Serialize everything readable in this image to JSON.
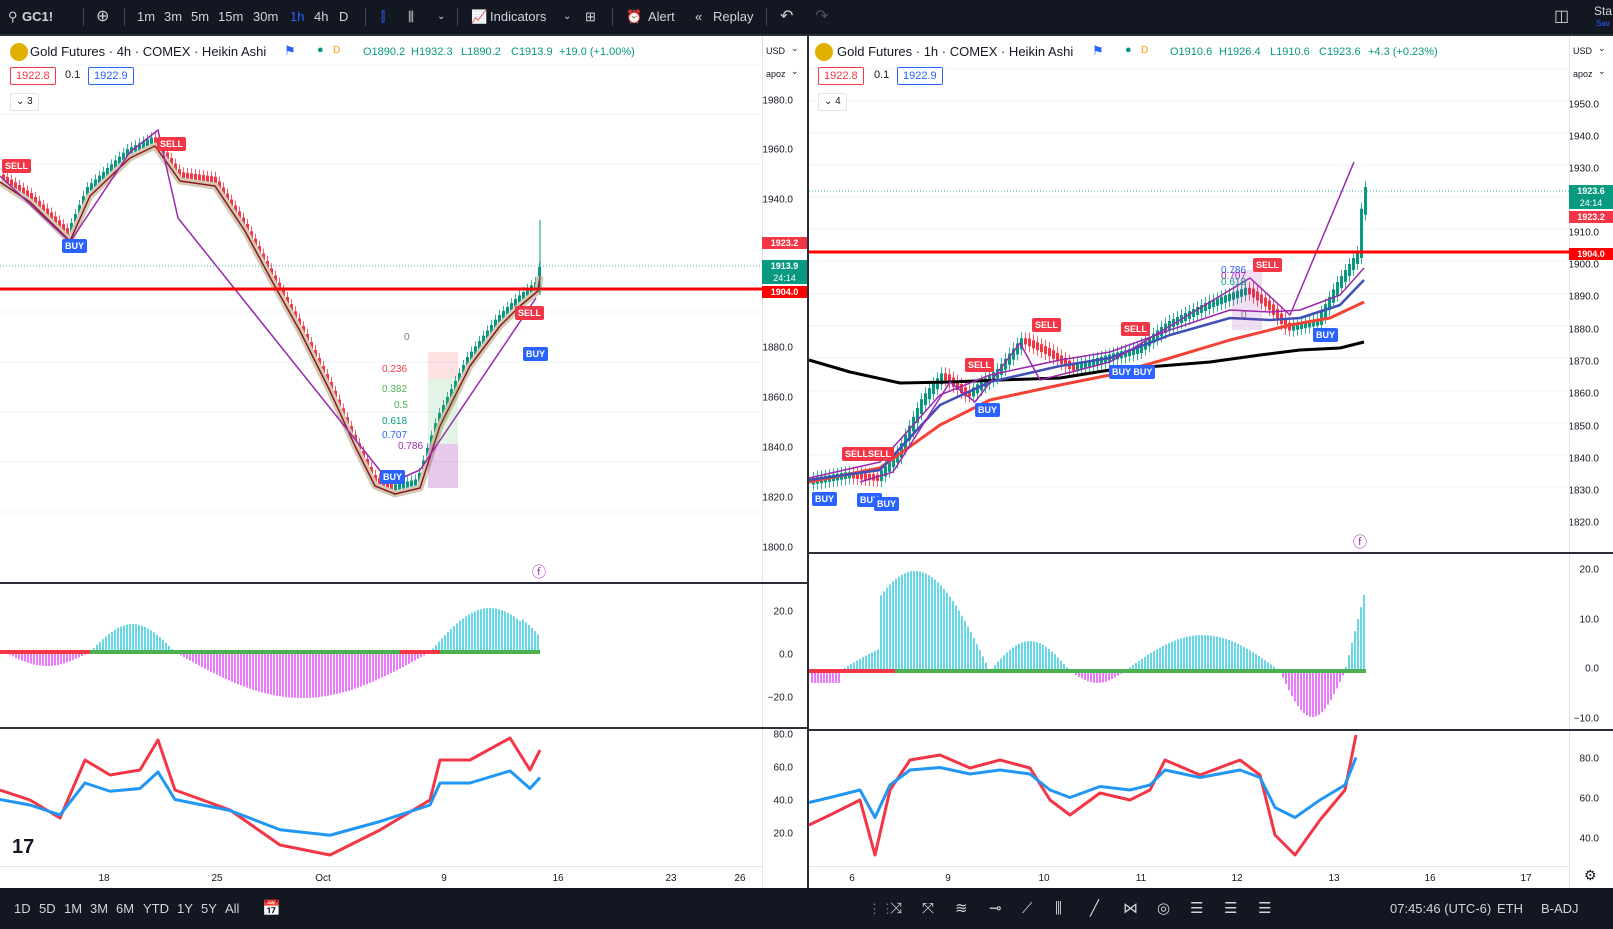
{
  "toolbar": {
    "symbol": "GC1!",
    "timeframes": [
      "1m",
      "3m",
      "5m",
      "15m",
      "30m",
      "1h",
      "4h",
      "D"
    ],
    "active_tf": "1h",
    "indicators": "Indicators",
    "alert": "Alert",
    "replay": "Replay",
    "right": "Sta",
    "right2": "Sav"
  },
  "bottom": {
    "ranges": [
      "1D",
      "5D",
      "1M",
      "3M",
      "6M",
      "YTD",
      "1Y",
      "5Y",
      "All"
    ],
    "time": "07:45:46 (UTC-6)",
    "session": "ETH",
    "adj": "B-ADJ"
  },
  "left": {
    "title": "Gold Futures · 4h · COMEX · Heikin Ashi",
    "d": "D",
    "o": "O1890.2",
    "h": "H1932.3",
    "l": "L1890.2",
    "c": "C1913.9",
    "chg": "+19.0 (+1.00%)",
    "bid": "1922.8",
    "spread": "0.1",
    "ask": "1922.9",
    "count": "3",
    "currency": "USD",
    "scale": "apoz",
    "yticks": [
      "1980.0",
      "1960.0",
      "1940.0",
      "1880.0",
      "1860.0",
      "1840.0",
      "1820.0",
      "1800.0"
    ],
    "osc_ticks": [
      "20.0",
      "0.0",
      "−20.0"
    ],
    "rsi_ticks": [
      "80.0",
      "60.0",
      "40.0",
      "20.0"
    ],
    "xticks": [
      "18",
      "25",
      "Oct",
      "9",
      "16",
      "23",
      "26"
    ],
    "labels": {
      "p1": "1923.2",
      "p2": "1913.9",
      "p3": "24:14",
      "p4": "1904.0"
    },
    "fib": [
      "0",
      "0.236",
      "0.382",
      "0.5",
      "0.618",
      "0.707",
      "0.786"
    ]
  },
  "right": {
    "title": "Gold Futures · 1h · COMEX · Heikin Ashi",
    "d": "D",
    "o": "O1910.6",
    "h": "H1926.4",
    "l": "L1910.6",
    "c": "C1923.6",
    "chg": "+4.3 (+0.23%)",
    "bid": "1922.8",
    "spread": "0.1",
    "ask": "1922.9",
    "count": "4",
    "currency": "USD",
    "scale": "apoz",
    "yticks": [
      "1950.0",
      "1940.0",
      "1930.0",
      "1910.0",
      "1900.0",
      "1890.0",
      "1880.0",
      "1870.0",
      "1860.0",
      "1850.0",
      "1840.0",
      "1830.0",
      "1820.0"
    ],
    "osc_ticks": [
      "20.0",
      "10.0",
      "0.0",
      "−10.0"
    ],
    "rsi_ticks": [
      "80.0",
      "60.0",
      "40.0"
    ],
    "xticks": [
      "6",
      "9",
      "10",
      "11",
      "12",
      "13",
      "16",
      "17"
    ],
    "labels": {
      "p1": "1923.6",
      "p2": "24:14",
      "p3": "1923.2",
      "p4": "1904.0"
    },
    "fib": [
      "0.786",
      "0.707",
      "0.618",
      "0"
    ]
  },
  "signals": {
    "sell": "SELL",
    "buy": "BUY",
    "sellsell": "SELLSELL",
    "buybuy": "BUY BUY"
  },
  "colors": {
    "bg": "#131722",
    "sell": "#f23645",
    "buy": "#2962ff",
    "level": "#ff0000"
  }
}
